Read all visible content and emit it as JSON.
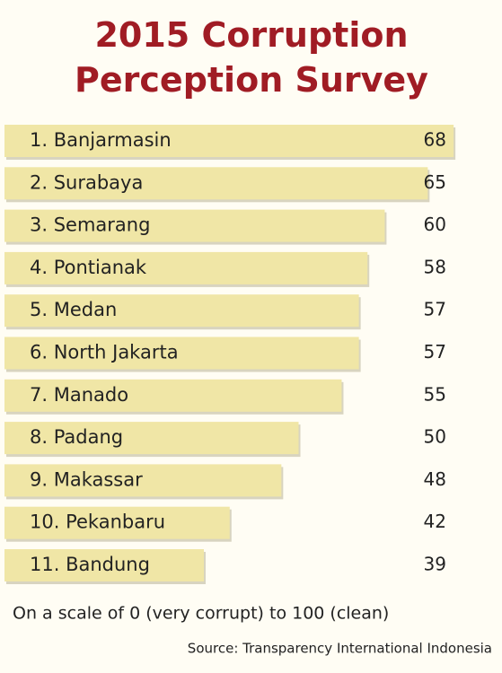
{
  "chart_data": {
    "type": "bar",
    "orientation": "horizontal",
    "title": "2015 Corruption Perception Survey",
    "categories": [
      "1. Banjarmasin",
      "2. Surabaya",
      "3. Semarang",
      "4. Pontianak",
      "5. Medan",
      "6. North Jakarta",
      "7. Manado",
      "8. Padang",
      "9. Makassar",
      "10. Pekanbaru",
      "11. Bandung"
    ],
    "values": [
      68,
      65,
      60,
      58,
      57,
      57,
      55,
      50,
      48,
      42,
      39
    ],
    "color": "#f0e6a6",
    "note": "On a scale of 0 (very corrupt) to 100 (clean)",
    "source": "Source: Transparency International Indonesia"
  }
}
